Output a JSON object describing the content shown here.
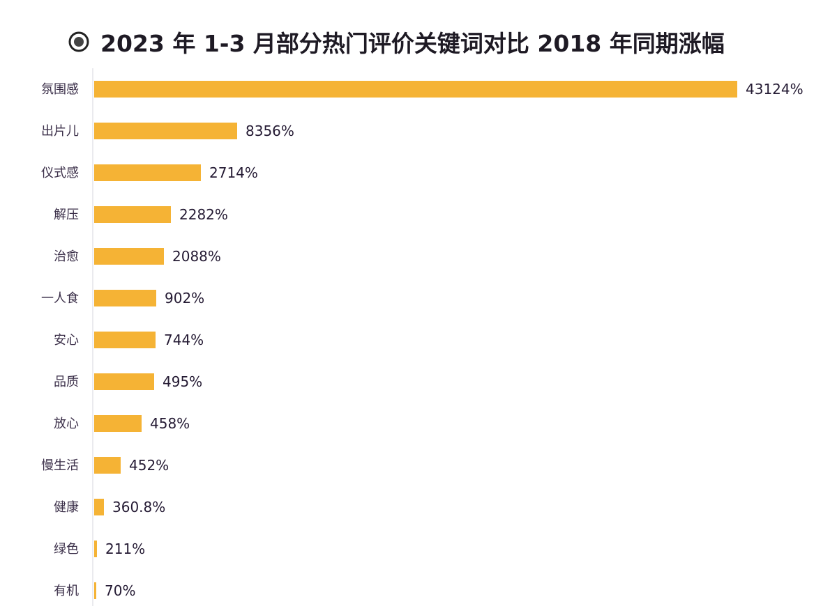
{
  "chart_data": {
    "type": "bar",
    "orientation": "horizontal",
    "title": "2023 年 1-3 月部分热门评价关键词对比 2018 年同期涨幅",
    "categories": [
      "氛围感",
      "出片儿",
      "仪式感",
      "解压",
      "治愈",
      "一人食",
      "安心",
      "品质",
      "放心",
      "慢生活",
      "健康",
      "绿色",
      "有机"
    ],
    "values": [
      43124,
      8356,
      2714,
      2282,
      2088,
      902,
      744,
      495,
      458,
      452,
      360.8,
      211,
      70
    ],
    "labels": [
      "43124%",
      "8356%",
      "2714%",
      "2282%",
      "2088%",
      "902%",
      "744%",
      "495%",
      "458%",
      "452%",
      "360.8%",
      "211%",
      "70%"
    ],
    "unit": "%",
    "xlabel": "",
    "ylabel": "",
    "grid": false,
    "legend": "none",
    "bar_color": "#F5B335",
    "title_icon": "radio-dot-icon"
  }
}
